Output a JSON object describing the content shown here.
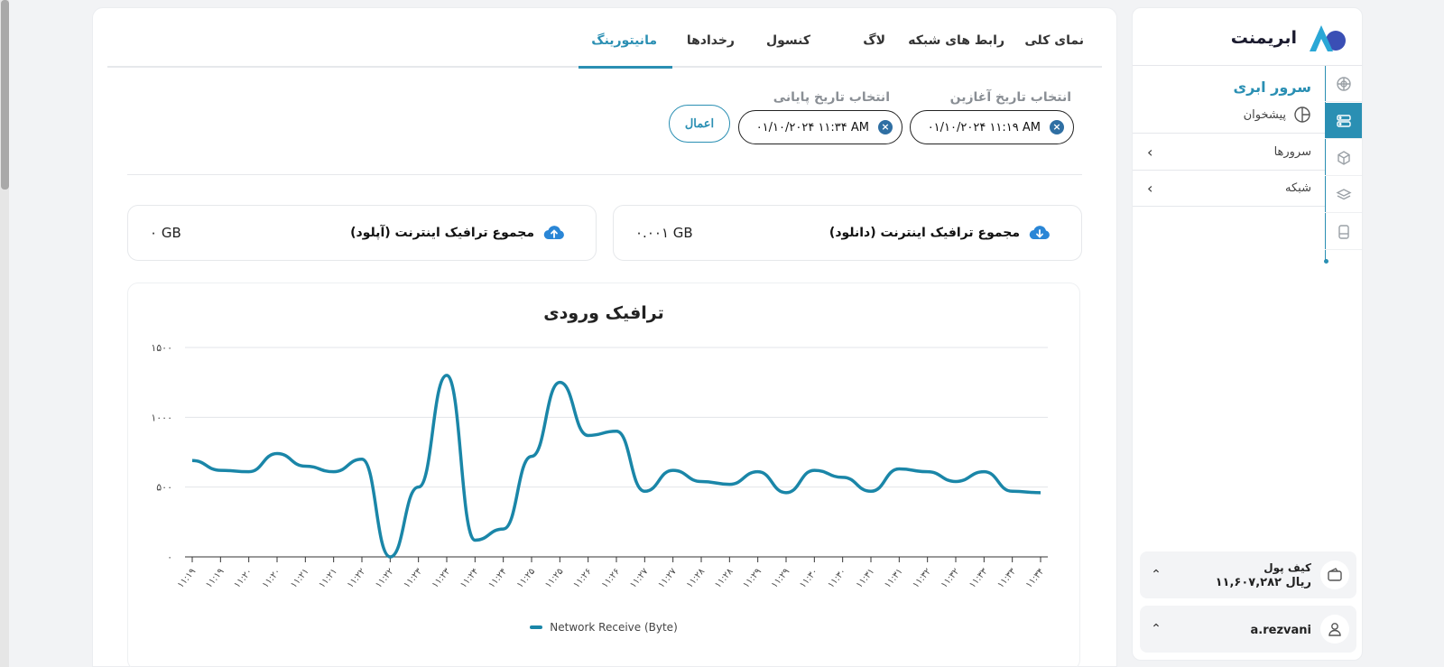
{
  "brand": {
    "name": "ابریمنت"
  },
  "sidebar": {
    "section_title": "سرور ابری",
    "dashboard_label": "پیشخوان",
    "items": [
      {
        "label": "سرورها"
      },
      {
        "label": "شبکه"
      }
    ],
    "wallet": {
      "title": "کیف پول",
      "balance": "۱۱,۶۰۷,۲۸۲ ریال"
    },
    "user": {
      "username": "a.rezvani"
    }
  },
  "tabs": [
    {
      "label": "نمای کلی"
    },
    {
      "label": "رابط های شبکه"
    },
    {
      "label": "لاگ"
    },
    {
      "label": "کنسول"
    },
    {
      "label": "رخدادها"
    },
    {
      "label": "مانیتورینگ",
      "active": true
    }
  ],
  "filters": {
    "start_label": "انتخاب تاریخ آغازین",
    "start_value": "۰۱/۱۰/۲۰۲۴ ۱۱:۱۹ AM",
    "end_label": "انتخاب تاریخ پایانی",
    "end_value": "۰۱/۱۰/۲۰۲۴ ۱۱:۳۴ AM",
    "apply_label": "اعمال"
  },
  "stats": {
    "download_label": "مجموع ترافیک اینترنت (دانلود)",
    "download_value": "۰.۰۰۱ GB",
    "upload_label": "مجموع ترافیک اینترنت (آپلود)",
    "upload_value": "۰ GB"
  },
  "colors": {
    "accent": "#2a8fb3",
    "line": "#1a86a8"
  },
  "chart_data": {
    "type": "line",
    "title": "ترافیک ورودی",
    "ylim": [
      0,
      1500
    ],
    "yticks": [
      "۰",
      "۵۰۰",
      "۱۰۰۰",
      "۱۵۰۰"
    ],
    "ytick_values": [
      0,
      500,
      1000,
      1500
    ],
    "categories": [
      "۱۱:۱۹",
      "۱۱:۱۹",
      "۱۱:۲۰",
      "۱۱:۲۰",
      "۱۱:۲۱",
      "۱۱:۲۱",
      "۱۱:۲۲",
      "۱۱:۲۲",
      "۱۱:۲۳",
      "۱۱:۲۳",
      "۱۱:۲۴",
      "۱۱:۲۴",
      "۱۱:۲۵",
      "۱۱:۲۵",
      "۱۱:۲۶",
      "۱۱:۲۶",
      "۱۱:۲۷",
      "۱۱:۲۷",
      "۱۱:۲۸",
      "۱۱:۲۸",
      "۱۱:۲۹",
      "۱۱:۲۹",
      "۱۱:۳۰",
      "۱۱:۳۰",
      "۱۱:۳۱",
      "۱۱:۳۱",
      "۱۱:۳۲",
      "۱۱:۳۲",
      "۱۱:۳۳",
      "۱۱:۳۳",
      "۱۱:۳۴"
    ],
    "series": [
      {
        "name": "Network Receive (Byte)",
        "values": [
          690,
          620,
          610,
          740,
          650,
          610,
          700,
          0,
          500,
          1300,
          120,
          200,
          720,
          1250,
          870,
          900,
          470,
          620,
          540,
          520,
          610,
          460,
          620,
          570,
          470,
          630,
          610,
          540,
          610,
          470,
          460
        ]
      }
    ],
    "grid": true,
    "legend": "bottom"
  }
}
